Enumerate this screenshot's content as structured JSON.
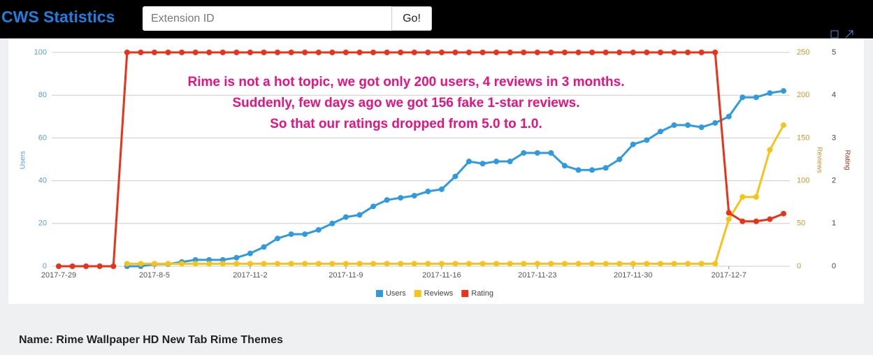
{
  "header": {
    "title": "CWS Statistics",
    "search_placeholder": "Extension ID",
    "button": "Go!"
  },
  "chart_data": {
    "type": "line",
    "annotations": [
      "Rime is not a hot topic, we got only 200 users, 4 reviews in 3 months.",
      "Suddenly, few days ago we got 156 fake 1-star reviews.",
      "So that our ratings dropped from 5.0 to 1.0."
    ],
    "categories": [
      "2017-7-29",
      null,
      null,
      null,
      null,
      null,
      null,
      "2017-8-5",
      null,
      null,
      null,
      null,
      null,
      null,
      "2017-11-2",
      null,
      null,
      null,
      null,
      null,
      null,
      "2017-11-9",
      null,
      null,
      null,
      null,
      null,
      null,
      "2017-11-16",
      null,
      null,
      null,
      null,
      null,
      null,
      "2017-11-23",
      null,
      null,
      null,
      null,
      null,
      null,
      "2017-11-30",
      null,
      null,
      null,
      null,
      null,
      null,
      "2017-12-7",
      null,
      null,
      null,
      null
    ],
    "y_label": "Users",
    "y2_label": "Reviews",
    "y3_label": "Rating",
    "ylim": [
      0,
      100
    ],
    "yticks": [
      0,
      20,
      40,
      60,
      80,
      100
    ],
    "y2lim": [
      0,
      250
    ],
    "y2ticks": [
      0,
      50,
      100,
      150,
      200,
      250
    ],
    "y3lim": [
      0,
      5
    ],
    "y3ticks": [
      0,
      1,
      2,
      3,
      4,
      5
    ],
    "grid": true,
    "legend": "bottom",
    "series": [
      {
        "name": "Users",
        "color": "#2f9ae0",
        "values": [
          null,
          null,
          null,
          null,
          null,
          0,
          0,
          1,
          1,
          2,
          3,
          3,
          3,
          4,
          6,
          9,
          13,
          15,
          15,
          17,
          20,
          23,
          24,
          28,
          31,
          32,
          33,
          35,
          36,
          42,
          49,
          48,
          49,
          49,
          53,
          53,
          53,
          47,
          45,
          45,
          46,
          50,
          57,
          59,
          63,
          66,
          66,
          65,
          67,
          70,
          79,
          79,
          81,
          82
        ]
      },
      {
        "name": "Reviews",
        "color": "#f7c31a",
        "axis": "y2",
        "values": [
          null,
          null,
          null,
          null,
          null,
          3,
          3,
          3,
          3,
          3,
          3,
          3,
          3,
          3,
          3,
          3,
          3,
          3,
          3,
          3,
          3,
          3,
          3,
          3,
          3,
          3,
          3,
          3,
          3,
          3,
          3,
          3,
          3,
          3,
          3,
          3,
          3,
          3,
          3,
          3,
          3,
          3,
          3,
          3,
          3,
          3,
          3,
          3,
          3,
          55,
          81,
          81,
          136,
          165
        ]
      },
      {
        "name": "Rating",
        "color": "#ea3219",
        "axis": "y3",
        "values": [
          0,
          0,
          0,
          0,
          0,
          5,
          5,
          5,
          5,
          5,
          5,
          5,
          5,
          5,
          5,
          5,
          5,
          5,
          5,
          5,
          5,
          5,
          5,
          5,
          5,
          5,
          5,
          5,
          5,
          5,
          5,
          5,
          5,
          5,
          5,
          5,
          5,
          5,
          5,
          5,
          5,
          5,
          5,
          5,
          5,
          5,
          5,
          5,
          5,
          1.25,
          1.05,
          1.05,
          1.1,
          1.23
        ]
      }
    ]
  },
  "footer": {
    "name": "Name: Rime Wallpaper HD New Tab Rime Themes"
  }
}
